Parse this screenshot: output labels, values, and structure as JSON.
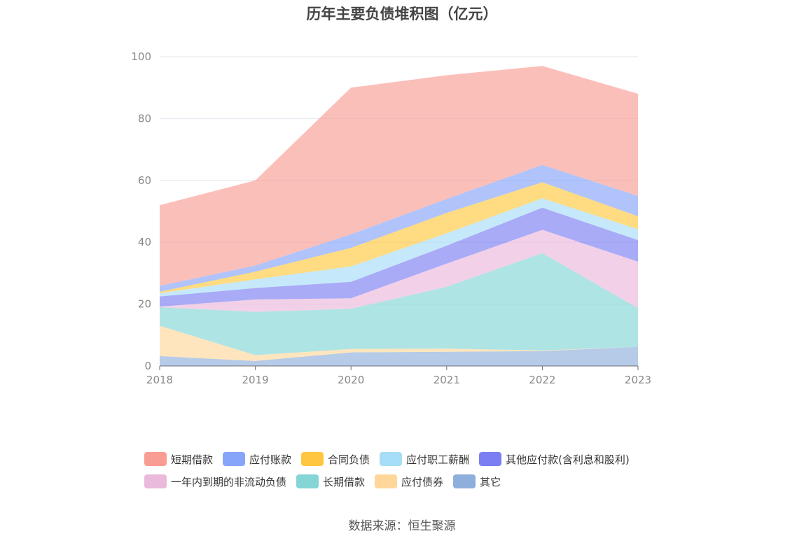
{
  "chart_data": {
    "type": "area",
    "stacked": true,
    "title": "历年主要负债堆积图（亿元）",
    "source": "数据来源：恒生聚源",
    "categories": [
      "2018",
      "2019",
      "2020",
      "2021",
      "2022",
      "2023"
    ],
    "ylim": [
      0,
      100
    ],
    "yticks": [
      0,
      20,
      40,
      60,
      80,
      100
    ],
    "grid": true,
    "legend_position": "bottom",
    "series": [
      {
        "name": "其它",
        "color": "#8eafdb",
        "values": [
          3.2,
          1.6,
          4.4,
          4.6,
          4.8,
          6.2
        ]
      },
      {
        "name": "应付债券",
        "color": "#ffd79a",
        "values": [
          9.8,
          1.9,
          1.1,
          1.0,
          0.2,
          0.0
        ]
      },
      {
        "name": "长期借款",
        "color": "#84d5d6",
        "values": [
          6.0,
          14.0,
          13.0,
          20.0,
          31.5,
          12.5
        ]
      },
      {
        "name": "一年内到期的非流动负债",
        "color": "#ebb9dc",
        "values": [
          0.2,
          4.0,
          3.4,
          7.5,
          7.5,
          15.0
        ]
      },
      {
        "name": "其他应付款(含利息和股利)",
        "color": "#7b7ef2",
        "values": [
          3.3,
          3.7,
          5.3,
          5.8,
          7.2,
          7.0
        ]
      },
      {
        "name": "应付职工薪酬",
        "color": "#a6ddf7",
        "values": [
          1.0,
          2.8,
          5.0,
          4.0,
          3.0,
          3.5
        ]
      },
      {
        "name": "合同负债",
        "color": "#ffc73f",
        "values": [
          0.5,
          2.5,
          6.0,
          6.6,
          5.2,
          4.2
        ]
      },
      {
        "name": "应付账款",
        "color": "#86a4f9",
        "values": [
          1.9,
          2.0,
          4.4,
          4.5,
          5.6,
          6.6
        ]
      },
      {
        "name": "短期借款",
        "color": "#f99d94",
        "values": [
          26.1,
          27.5,
          47.4,
          40.0,
          32.0,
          33.0
        ]
      }
    ],
    "legend_order": [
      "短期借款",
      "应付账款",
      "合同负债",
      "应付职工薪酬",
      "其他应付款(含利息和股利)",
      "一年内到期的非流动负债",
      "长期借款",
      "应付债券",
      "其它"
    ]
  }
}
